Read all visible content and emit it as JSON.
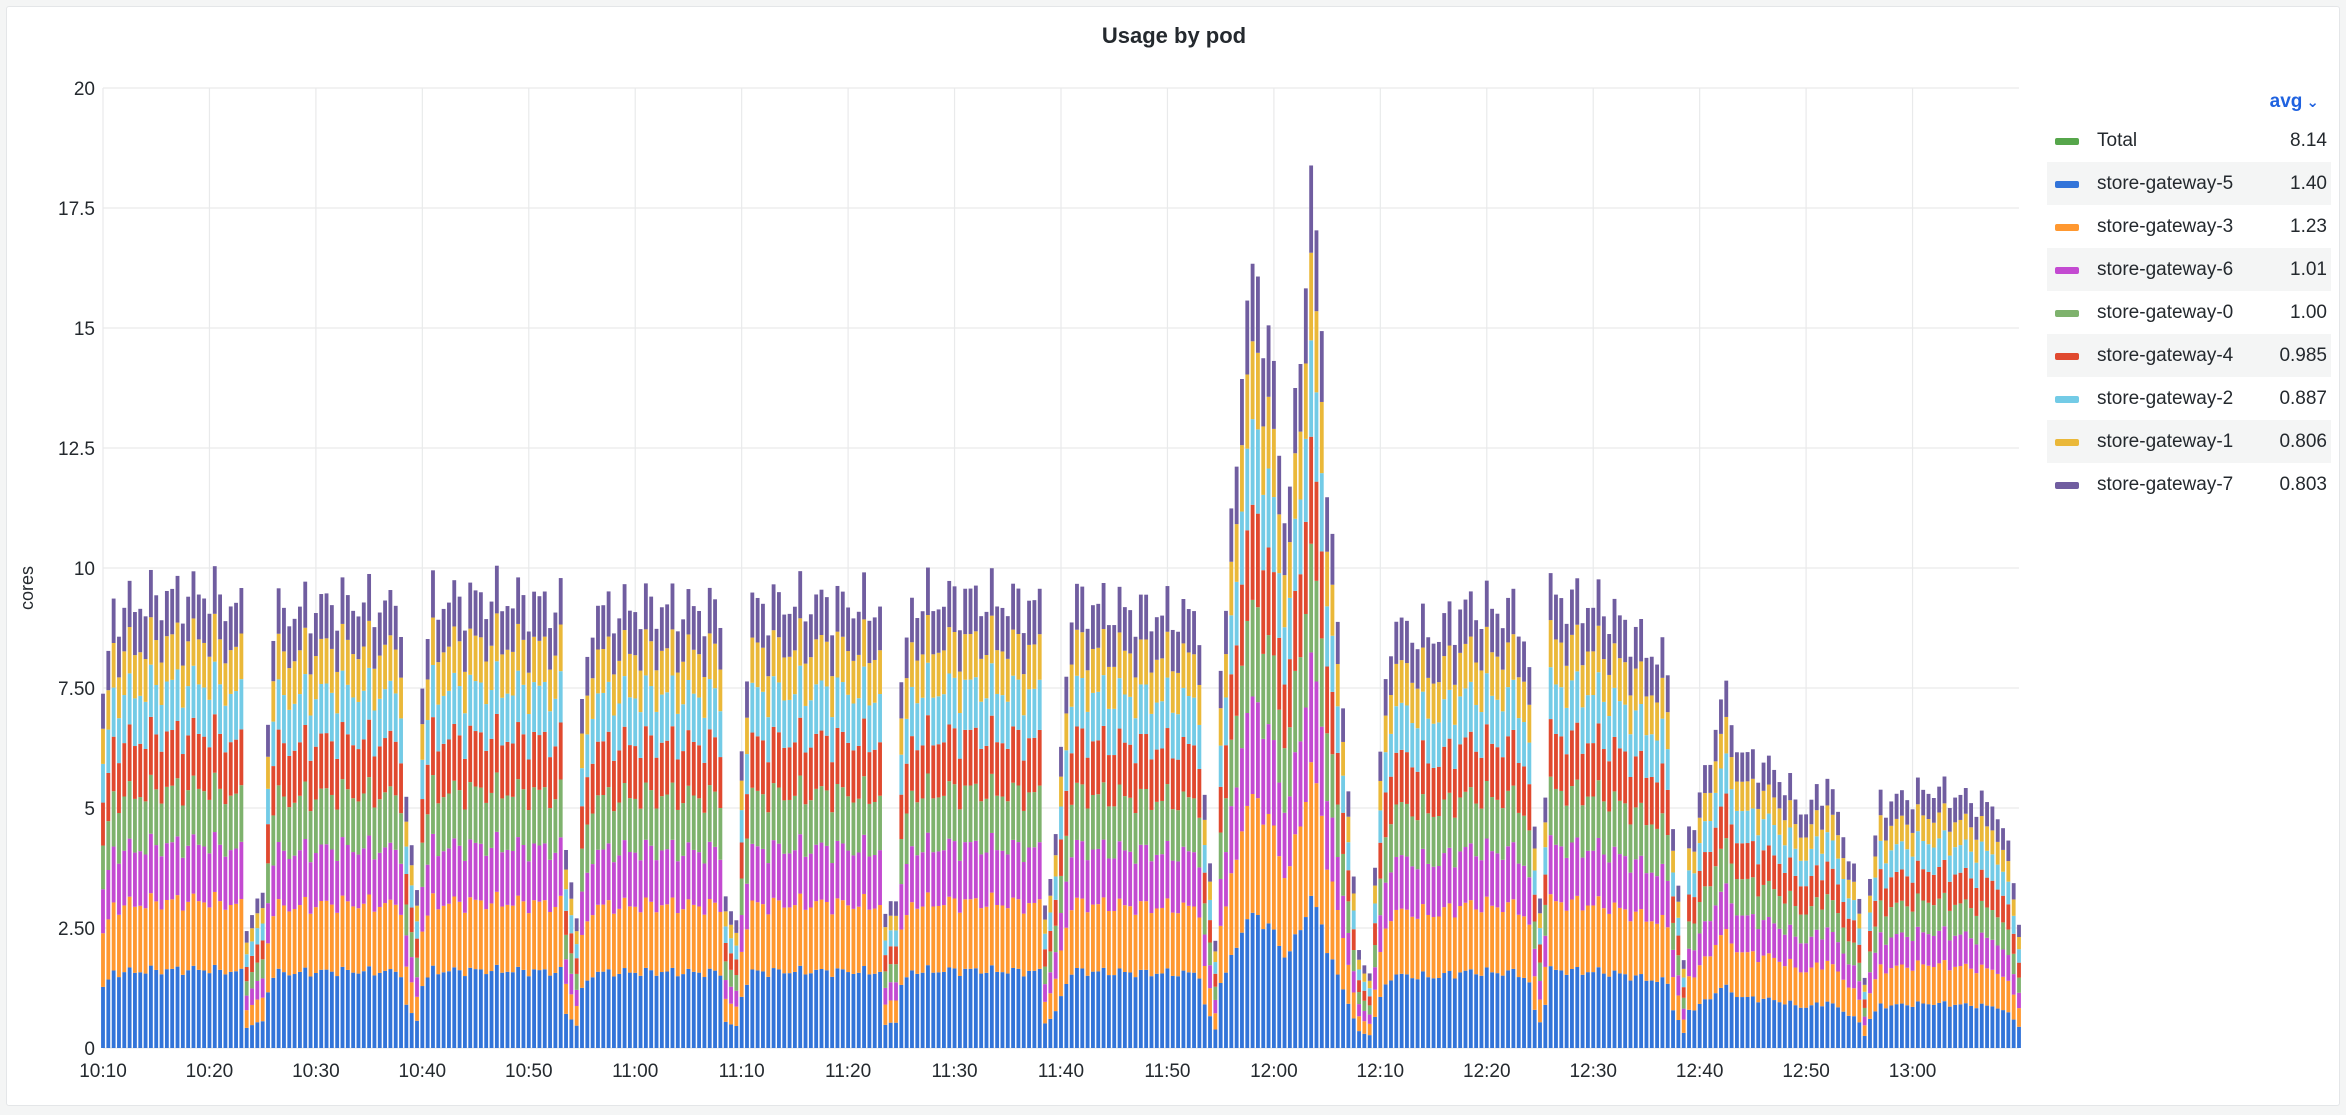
{
  "panel": {
    "title": "Usage by pod"
  },
  "chart_data": {
    "type": "bar",
    "stacked": true,
    "title": "Usage by pod",
    "xlabel": "",
    "ylabel": "cores",
    "ylim": [
      0,
      20
    ],
    "y_ticks": [
      {
        "value": 0,
        "label": "0"
      },
      {
        "value": 2.5,
        "label": "2.50"
      },
      {
        "value": 5,
        "label": "5"
      },
      {
        "value": 7.5,
        "label": "7.50"
      },
      {
        "value": 10,
        "label": "10"
      },
      {
        "value": 12.5,
        "label": "12.5"
      },
      {
        "value": 15,
        "label": "15"
      },
      {
        "value": 17.5,
        "label": "17.5"
      },
      {
        "value": 20,
        "label": "20"
      }
    ],
    "x_range_minutes": [
      0,
      180
    ],
    "x_ticks": [
      {
        "minute": 0,
        "label": "10:10"
      },
      {
        "minute": 10,
        "label": "10:20"
      },
      {
        "minute": 20,
        "label": "10:30"
      },
      {
        "minute": 30,
        "label": "10:40"
      },
      {
        "minute": 40,
        "label": "10:50"
      },
      {
        "minute": 50,
        "label": "11:00"
      },
      {
        "minute": 60,
        "label": "11:10"
      },
      {
        "minute": 70,
        "label": "11:20"
      },
      {
        "minute": 80,
        "label": "11:30"
      },
      {
        "minute": 90,
        "label": "11:40"
      },
      {
        "minute": 100,
        "label": "11:50"
      },
      {
        "minute": 110,
        "label": "12:00"
      },
      {
        "minute": 120,
        "label": "12:10"
      },
      {
        "minute": 130,
        "label": "12:20"
      },
      {
        "minute": 140,
        "label": "12:30"
      },
      {
        "minute": 150,
        "label": "12:40"
      },
      {
        "minute": 160,
        "label": "12:50"
      },
      {
        "minute": 170,
        "label": "13:00"
      }
    ],
    "grid": true,
    "legend_placement": "right",
    "legend_calc": "avg",
    "sample_step_minutes": 0.5,
    "series": [
      {
        "name": "Total",
        "color": "#56a64b",
        "avg": "8.14",
        "in_stack": false
      },
      {
        "name": "store-gateway-5",
        "color": "#3274d9",
        "avg": "1.40",
        "in_stack": true
      },
      {
        "name": "store-gateway-3",
        "color": "#ff9830",
        "avg": "1.23",
        "in_stack": true
      },
      {
        "name": "store-gateway-6",
        "color": "#c34ad1",
        "avg": "1.01",
        "in_stack": true
      },
      {
        "name": "store-gateway-0",
        "color": "#7eb26d",
        "avg": "1.00",
        "in_stack": true
      },
      {
        "name": "store-gateway-4",
        "color": "#e0492f",
        "avg": "0.985",
        "in_stack": true
      },
      {
        "name": "store-gateway-2",
        "color": "#73cbe6",
        "avg": "0.887",
        "in_stack": true
      },
      {
        "name": "store-gateway-1",
        "color": "#eab839",
        "avg": "0.806",
        "in_stack": true
      },
      {
        "name": "store-gateway-7",
        "color": "#705da0",
        "avg": "0.803",
        "in_stack": true
      }
    ],
    "stack_total_profile": [
      {
        "minute": 0,
        "value": 7.2
      },
      {
        "minute": 1,
        "value": 9.1
      },
      {
        "minute": 5,
        "value": 9.4
      },
      {
        "minute": 10,
        "value": 9.5
      },
      {
        "minute": 13,
        "value": 9.1
      },
      {
        "minute": 13.5,
        "value": 2.6
      },
      {
        "minute": 15,
        "value": 3.2
      },
      {
        "minute": 15.5,
        "value": 6.8
      },
      {
        "minute": 16,
        "value": 9.0
      },
      {
        "minute": 22,
        "value": 9.3
      },
      {
        "minute": 28,
        "value": 9.2
      },
      {
        "minute": 28.5,
        "value": 5.0
      },
      {
        "minute": 29.5,
        "value": 3.3
      },
      {
        "minute": 30,
        "value": 7.8
      },
      {
        "minute": 31,
        "value": 9.3
      },
      {
        "minute": 37,
        "value": 9.4
      },
      {
        "minute": 43,
        "value": 9.2
      },
      {
        "minute": 43.5,
        "value": 4.2
      },
      {
        "minute": 44.5,
        "value": 2.8
      },
      {
        "minute": 45,
        "value": 6.9
      },
      {
        "minute": 46,
        "value": 9.1
      },
      {
        "minute": 52,
        "value": 9.2
      },
      {
        "minute": 58,
        "value": 9.1
      },
      {
        "minute": 58.5,
        "value": 3.2
      },
      {
        "minute": 59.5,
        "value": 2.5
      },
      {
        "minute": 60,
        "value": 6.5
      },
      {
        "minute": 61,
        "value": 9.2
      },
      {
        "minute": 67,
        "value": 9.3
      },
      {
        "minute": 73,
        "value": 9.2
      },
      {
        "minute": 73.5,
        "value": 2.7
      },
      {
        "minute": 74.5,
        "value": 3.3
      },
      {
        "minute": 75,
        "value": 7.4
      },
      {
        "minute": 76,
        "value": 9.3
      },
      {
        "minute": 82,
        "value": 9.4
      },
      {
        "minute": 88,
        "value": 9.2
      },
      {
        "minute": 88.5,
        "value": 3.1
      },
      {
        "minute": 89.5,
        "value": 4.2
      },
      {
        "minute": 90,
        "value": 6.3
      },
      {
        "minute": 91,
        "value": 9.3
      },
      {
        "minute": 97,
        "value": 9.1
      },
      {
        "minute": 103,
        "value": 9.0
      },
      {
        "minute": 103.5,
        "value": 5.1
      },
      {
        "minute": 104.5,
        "value": 2.3
      },
      {
        "minute": 105,
        "value": 8.0
      },
      {
        "minute": 106,
        "value": 10.5
      },
      {
        "minute": 107,
        "value": 14.5
      },
      {
        "minute": 108,
        "value": 16.0
      },
      {
        "minute": 109,
        "value": 15.5
      },
      {
        "minute": 110,
        "value": 13.8
      },
      {
        "minute": 111,
        "value": 11.2
      },
      {
        "minute": 112,
        "value": 12.8
      },
      {
        "minute": 113,
        "value": 16.4
      },
      {
        "minute": 113.5,
        "value": 18.3
      },
      {
        "minute": 114,
        "value": 16.6
      },
      {
        "minute": 115,
        "value": 12.4
      },
      {
        "minute": 116,
        "value": 8.6
      },
      {
        "minute": 117,
        "value": 5.5
      },
      {
        "minute": 118,
        "value": 1.9
      },
      {
        "minute": 119,
        "value": 1.6
      },
      {
        "minute": 120,
        "value": 6.0
      },
      {
        "minute": 121,
        "value": 8.8
      },
      {
        "minute": 125,
        "value": 8.6
      },
      {
        "minute": 128,
        "value": 9.2
      },
      {
        "minute": 133,
        "value": 9.1
      },
      {
        "minute": 134,
        "value": 7.9
      },
      {
        "minute": 134.5,
        "value": 4.4
      },
      {
        "minute": 135,
        "value": 3.2
      },
      {
        "minute": 135.5,
        "value": 5.5
      },
      {
        "minute": 136,
        "value": 9.4
      },
      {
        "minute": 141,
        "value": 9.2
      },
      {
        "minute": 145,
        "value": 8.4
      },
      {
        "minute": 147,
        "value": 7.9
      },
      {
        "minute": 147.5,
        "value": 4.8
      },
      {
        "minute": 148.5,
        "value": 1.8
      },
      {
        "minute": 149,
        "value": 4.5
      },
      {
        "minute": 151,
        "value": 6.0
      },
      {
        "minute": 152,
        "value": 7.5
      },
      {
        "minute": 154,
        "value": 6.1
      },
      {
        "minute": 157,
        "value": 5.8
      },
      {
        "minute": 160,
        "value": 4.9
      },
      {
        "minute": 162,
        "value": 5.6
      },
      {
        "minute": 164,
        "value": 4.1
      },
      {
        "minute": 165,
        "value": 3.1
      },
      {
        "minute": 165.5,
        "value": 1.5
      },
      {
        "minute": 166,
        "value": 3.6
      },
      {
        "minute": 167,
        "value": 5.1
      },
      {
        "minute": 172,
        "value": 5.4
      },
      {
        "minute": 178,
        "value": 5.0
      },
      {
        "minute": 179.5,
        "value": 3.6
      },
      {
        "minute": 180,
        "value": 2.6
      }
    ]
  }
}
